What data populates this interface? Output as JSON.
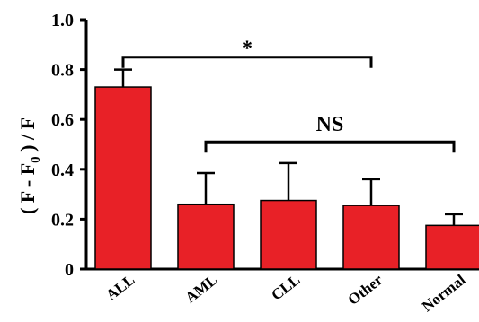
{
  "chart_data": {
    "type": "bar",
    "categories": [
      "ALL",
      "AML",
      "CLL",
      "Other",
      "Normal"
    ],
    "values": [
      0.73,
      0.26,
      0.275,
      0.255,
      0.175
    ],
    "errors": [
      0.07,
      0.125,
      0.15,
      0.105,
      0.045
    ],
    "ylabel": "( F - F",
    "ylabel_sub": "0",
    "ylabel_tail": " ) / F",
    "ylim": [
      0,
      1.0
    ],
    "yticks": [
      "0",
      "0.2",
      "0.4",
      "0.6",
      "0.8",
      "1.0"
    ],
    "bar_color": "#e82127",
    "grid": false,
    "annotations": [
      {
        "label": "*",
        "from": "ALL",
        "to": "Other",
        "y": 0.85
      },
      {
        "label": "NS",
        "from": "AML",
        "to": "Normal",
        "y": 0.51
      }
    ]
  }
}
